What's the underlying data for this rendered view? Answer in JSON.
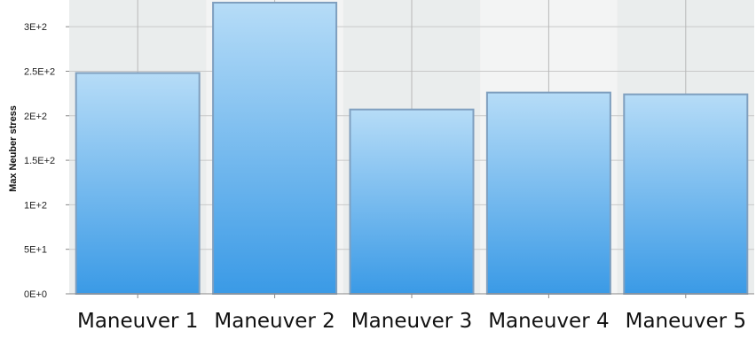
{
  "chart_data": {
    "type": "bar",
    "title": "",
    "xlabel": "",
    "ylabel": "Max Neuber stress",
    "categories": [
      "Maneuver 1",
      "Maneuver 2",
      "Maneuver 3",
      "Maneuver 4",
      "Maneuver 5"
    ],
    "values": [
      248,
      327,
      207,
      226,
      224
    ],
    "ylim": [
      0,
      330
    ],
    "yticks": [
      0,
      50,
      100,
      150,
      200,
      250,
      300
    ],
    "ytick_labels": [
      "0E+0",
      "5E+1",
      "1E+2",
      "1.5E+2",
      "2E+2",
      "2.5E+2",
      "3E+2"
    ],
    "grid": true,
    "colors": {
      "bar_top": "#b6dcf7",
      "bar_bottom": "#3a9ae6",
      "bar_edge": "#7f9fbf",
      "grid": "#c8c8c8",
      "plot_bg_dark": "#e4e7e7",
      "plot_bg_light": "#f3f4f4"
    }
  }
}
